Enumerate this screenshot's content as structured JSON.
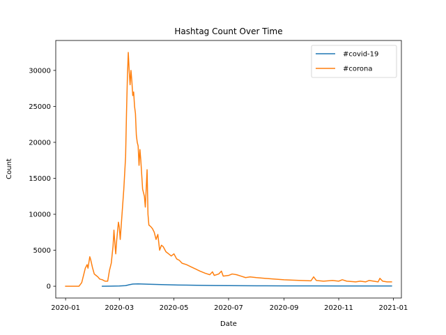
{
  "chart_data": {
    "type": "line",
    "title": "Hashtag Count Over Time",
    "xlabel": "Date",
    "ylabel": "Count",
    "x_ticks": [
      "2020-01",
      "2020-03",
      "2020-05",
      "2020-07",
      "2020-09",
      "2020-11",
      "2021-01"
    ],
    "y_ticks": [
      0,
      5000,
      10000,
      15000,
      20000,
      25000,
      30000
    ],
    "xlim": [
      "2019-12-21",
      "2021-01-10"
    ],
    "ylim": [
      -1640,
      34160
    ],
    "grid": false,
    "legend": "top-right",
    "series": [
      {
        "name": "#covid-19",
        "color": "#1f77b4",
        "points": [
          [
            "2020-02-11",
            0
          ],
          [
            "2020-02-20",
            10
          ],
          [
            "2020-03-01",
            30
          ],
          [
            "2020-03-08",
            80
          ],
          [
            "2020-03-12",
            200
          ],
          [
            "2020-03-16",
            300
          ],
          [
            "2020-03-22",
            320
          ],
          [
            "2020-03-28",
            300
          ],
          [
            "2020-04-03",
            280
          ],
          [
            "2020-04-10",
            250
          ],
          [
            "2020-04-20",
            210
          ],
          [
            "2020-05-01",
            180
          ],
          [
            "2020-05-15",
            150
          ],
          [
            "2020-06-01",
            120
          ],
          [
            "2020-06-15",
            100
          ],
          [
            "2020-07-01",
            80
          ],
          [
            "2020-08-01",
            60
          ],
          [
            "2020-09-01",
            50
          ],
          [
            "2020-10-01",
            40
          ],
          [
            "2020-11-01",
            35
          ],
          [
            "2020-12-01",
            30
          ],
          [
            "2020-12-30",
            30
          ]
        ]
      },
      {
        "name": "#corona",
        "color": "#ff7f0e",
        "points": [
          [
            "2020-01-01",
            0
          ],
          [
            "2020-01-05",
            0
          ],
          [
            "2020-01-09",
            0
          ],
          [
            "2020-01-13",
            0
          ],
          [
            "2020-01-16",
            0
          ],
          [
            "2020-01-19",
            500
          ],
          [
            "2020-01-21",
            1500
          ],
          [
            "2020-01-23",
            2500
          ],
          [
            "2020-01-25",
            3000
          ],
          [
            "2020-01-26",
            2500
          ],
          [
            "2020-01-28",
            4100
          ],
          [
            "2020-01-29",
            3700
          ],
          [
            "2020-01-31",
            2600
          ],
          [
            "2020-02-02",
            1700
          ],
          [
            "2020-02-04",
            1500
          ],
          [
            "2020-02-06",
            1300
          ],
          [
            "2020-02-08",
            1000
          ],
          [
            "2020-02-11",
            900
          ],
          [
            "2020-02-14",
            700
          ],
          [
            "2020-02-17",
            700
          ],
          [
            "2020-02-19",
            2200
          ],
          [
            "2020-02-21",
            3200
          ],
          [
            "2020-02-23",
            5600
          ],
          [
            "2020-02-24",
            7800
          ],
          [
            "2020-02-25",
            6000
          ],
          [
            "2020-02-26",
            4500
          ],
          [
            "2020-02-27",
            6300
          ],
          [
            "2020-02-29",
            8900
          ],
          [
            "2020-03-01",
            8200
          ],
          [
            "2020-03-02",
            6500
          ],
          [
            "2020-03-04",
            10000
          ],
          [
            "2020-03-06",
            13500
          ],
          [
            "2020-03-08",
            18000
          ],
          [
            "2020-03-09",
            24000
          ],
          [
            "2020-03-10",
            29000
          ],
          [
            "2020-03-11",
            32500
          ],
          [
            "2020-03-12",
            30000
          ],
          [
            "2020-03-13",
            28000
          ],
          [
            "2020-03-14",
            30000
          ],
          [
            "2020-03-15",
            28500
          ],
          [
            "2020-03-16",
            26500
          ],
          [
            "2020-03-17",
            27000
          ],
          [
            "2020-03-18",
            25000
          ],
          [
            "2020-03-19",
            24000
          ],
          [
            "2020-03-20",
            21000
          ],
          [
            "2020-03-21",
            20000
          ],
          [
            "2020-03-22",
            19500
          ],
          [
            "2020-03-23",
            16800
          ],
          [
            "2020-03-24",
            19000
          ],
          [
            "2020-03-25",
            17500
          ],
          [
            "2020-03-26",
            15500
          ],
          [
            "2020-03-27",
            13500
          ],
          [
            "2020-03-29",
            12500
          ],
          [
            "2020-03-30",
            11000
          ],
          [
            "2020-03-31",
            13500
          ],
          [
            "2020-04-01",
            16200
          ],
          [
            "2020-04-02",
            10000
          ],
          [
            "2020-04-03",
            8500
          ],
          [
            "2020-04-05",
            8300
          ],
          [
            "2020-04-07",
            8000
          ],
          [
            "2020-04-09",
            7500
          ],
          [
            "2020-04-11",
            6500
          ],
          [
            "2020-04-13",
            7200
          ],
          [
            "2020-04-15",
            5000
          ],
          [
            "2020-04-17",
            5700
          ],
          [
            "2020-04-19",
            5500
          ],
          [
            "2020-04-22",
            4800
          ],
          [
            "2020-04-25",
            4500
          ],
          [
            "2020-04-28",
            4200
          ],
          [
            "2020-05-01",
            4500
          ],
          [
            "2020-05-04",
            3800
          ],
          [
            "2020-05-07",
            3600
          ],
          [
            "2020-05-10",
            3200
          ],
          [
            "2020-05-15",
            3000
          ],
          [
            "2020-05-20",
            2700
          ],
          [
            "2020-05-25",
            2400
          ],
          [
            "2020-05-30",
            2100
          ],
          [
            "2020-06-05",
            1800
          ],
          [
            "2020-06-10",
            1600
          ],
          [
            "2020-06-13",
            2000
          ],
          [
            "2020-06-15",
            1500
          ],
          [
            "2020-06-20",
            1700
          ],
          [
            "2020-06-23",
            2100
          ],
          [
            "2020-06-25",
            1400
          ],
          [
            "2020-07-01",
            1500
          ],
          [
            "2020-07-05",
            1700
          ],
          [
            "2020-07-10",
            1600
          ],
          [
            "2020-07-15",
            1400
          ],
          [
            "2020-07-20",
            1200
          ],
          [
            "2020-07-25",
            1300
          ],
          [
            "2020-08-01",
            1200
          ],
          [
            "2020-08-10",
            1100
          ],
          [
            "2020-08-20",
            1000
          ],
          [
            "2020-09-01",
            900
          ],
          [
            "2020-09-10",
            850
          ],
          [
            "2020-09-20",
            800
          ],
          [
            "2020-10-01",
            750
          ],
          [
            "2020-10-04",
            1300
          ],
          [
            "2020-10-07",
            800
          ],
          [
            "2020-10-15",
            700
          ],
          [
            "2020-10-25",
            800
          ],
          [
            "2020-11-01",
            700
          ],
          [
            "2020-11-05",
            900
          ],
          [
            "2020-11-10",
            700
          ],
          [
            "2020-11-20",
            600
          ],
          [
            "2020-11-25",
            700
          ],
          [
            "2020-12-01",
            600
          ],
          [
            "2020-12-05",
            800
          ],
          [
            "2020-12-10",
            700
          ],
          [
            "2020-12-15",
            600
          ],
          [
            "2020-12-17",
            1100
          ],
          [
            "2020-12-20",
            700
          ],
          [
            "2020-12-25",
            600
          ],
          [
            "2020-12-30",
            600
          ]
        ]
      }
    ]
  }
}
